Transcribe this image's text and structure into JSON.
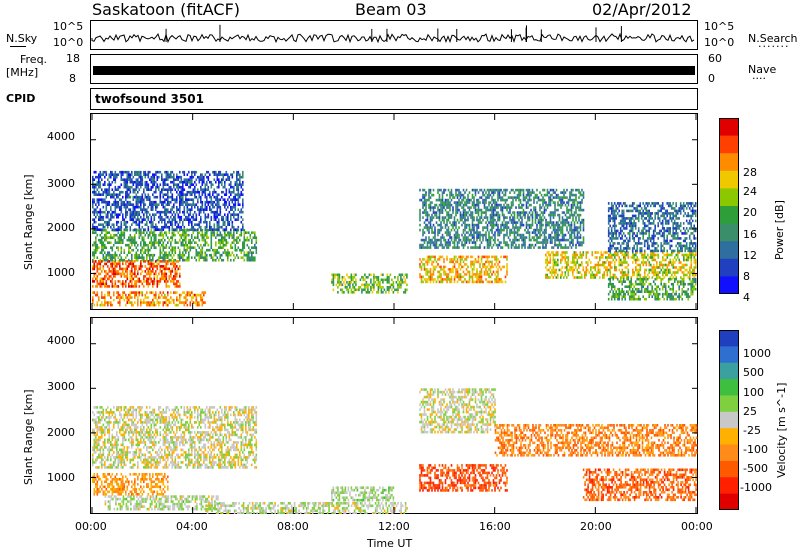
{
  "header": {
    "station": "Saskatoon (fitACF)",
    "beam": "Beam 03",
    "date": "02/Apr/2012"
  },
  "strips": {
    "nsky_label": "N.Sky",
    "nsearch_label": "N.Search",
    "freq_label": "Freq.",
    "freq_unit": "[MHz]",
    "nave_label": "Nave",
    "cpid_label": "CPID",
    "cpid_value": "twofsound 3501",
    "nsky_ticks": [
      "10^5",
      "10^0"
    ],
    "nsearch_ticks": [
      "10^5",
      "10^0"
    ],
    "freq_ticks": [
      "18",
      "8"
    ],
    "nave_ticks": [
      "60",
      "0"
    ]
  },
  "chart_data": [
    {
      "type": "heatmap",
      "panel": "power",
      "ylabel": "Slant Range [km]",
      "ylim": [
        180,
        4600
      ],
      "yticks": [
        "4000",
        "3000",
        "2000",
        "1000"
      ],
      "xlim": [
        "00:00",
        "24:00"
      ],
      "colorbar": {
        "label": "Power [dB]",
        "ticks": [
          "28",
          "24",
          "20",
          "16",
          "12",
          "8",
          "4"
        ],
        "colors": [
          "#e00000",
          "#ff4000",
          "#ff8c00",
          "#f0c800",
          "#8cc800",
          "#2e9e3a",
          "#3a8f6a",
          "#2f6f9f",
          "#2040c0",
          "#1010ff"
        ]
      },
      "bands": [
        {
          "hour_start": 0.0,
          "hour_end": 3.5,
          "range_start": 700,
          "range_end": 1300,
          "db": 26
        },
        {
          "hour_start": 0.0,
          "hour_end": 4.5,
          "range_start": 300,
          "range_end": 600,
          "db": 24
        },
        {
          "hour_start": 0.0,
          "hour_end": 6.5,
          "range_start": 1300,
          "range_end": 2000,
          "db": 14
        },
        {
          "hour_start": 0.0,
          "hour_end": 6.0,
          "range_start": 2000,
          "range_end": 3300,
          "db": 6
        },
        {
          "hour_start": 9.5,
          "hour_end": 12.5,
          "range_start": 600,
          "range_end": 1000,
          "db": 16
        },
        {
          "hour_start": 13.0,
          "hour_end": 16.5,
          "range_start": 800,
          "range_end": 1400,
          "db": 22
        },
        {
          "hour_start": 13.0,
          "hour_end": 19.5,
          "range_start": 1600,
          "range_end": 2900,
          "db": 10
        },
        {
          "hour_start": 18.0,
          "hour_end": 24.0,
          "range_start": 900,
          "range_end": 1500,
          "db": 20
        },
        {
          "hour_start": 20.5,
          "hour_end": 24.0,
          "range_start": 400,
          "range_end": 900,
          "db": 14
        },
        {
          "hour_start": 20.5,
          "hour_end": 24.0,
          "range_start": 1500,
          "range_end": 2600,
          "db": 8
        }
      ]
    },
    {
      "type": "heatmap",
      "panel": "velocity",
      "ylabel": "Slant Range [km]",
      "ylim": [
        180,
        4600
      ],
      "yticks": [
        "4000",
        "3000",
        "2000",
        "1000"
      ],
      "xlabel": "Time UT",
      "xticks": [
        "00:00",
        "04:00",
        "08:00",
        "12:00",
        "16:00",
        "20:00",
        "00:00"
      ],
      "colorbar": {
        "label": "Velocity [m s^-1]",
        "ticks": [
          "1000",
          "500",
          "100",
          "25",
          "-25",
          "-100",
          "-500",
          "-1000"
        ],
        "colors": [
          "#1f3fbf",
          "#2f6fd0",
          "#3aa0a0",
          "#3fbf3f",
          "#7fd040",
          "#c8c8c8",
          "#ffb000",
          "#ff8c1a",
          "#ff5a00",
          "#ff2000",
          "#e00000"
        ]
      },
      "bands": [
        {
          "hour_start": 0.0,
          "hour_end": 6.5,
          "range_start": 1200,
          "range_end": 2600,
          "vel": 0
        },
        {
          "hour_start": 0.0,
          "hour_end": 3.0,
          "range_start": 600,
          "range_end": 1100,
          "vel": -300
        },
        {
          "hour_start": 0.5,
          "hour_end": 5.0,
          "range_start": 300,
          "range_end": 600,
          "vel": 80
        },
        {
          "hour_start": 9.5,
          "hour_end": 12.0,
          "range_start": 500,
          "range_end": 800,
          "vel": 120
        },
        {
          "hour_start": 13.0,
          "hour_end": 16.5,
          "range_start": 700,
          "range_end": 1300,
          "vel": -600
        },
        {
          "hour_start": 13.0,
          "hour_end": 16.0,
          "range_start": 2000,
          "range_end": 3000,
          "vel": 0
        },
        {
          "hour_start": 16.0,
          "hour_end": 24.0,
          "range_start": 1500,
          "range_end": 2200,
          "vel": -400
        },
        {
          "hour_start": 19.5,
          "hour_end": 24.0,
          "range_start": 500,
          "range_end": 1200,
          "vel": -500
        },
        {
          "hour_start": 4.5,
          "hour_end": 12.5,
          "range_start": 200,
          "range_end": 450,
          "vel": 60
        }
      ]
    }
  ]
}
